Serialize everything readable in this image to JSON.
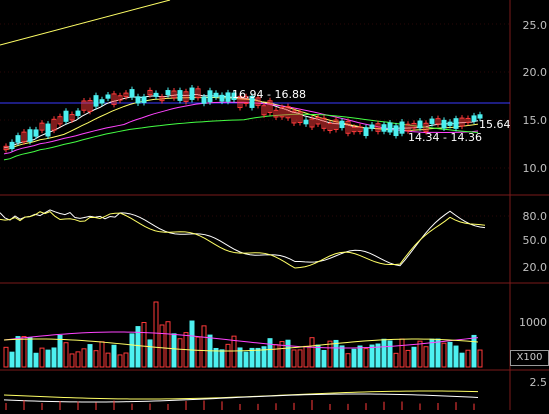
{
  "price_axis": [
    "25.0",
    "20.0",
    "15.0",
    "10.0"
  ],
  "kd_axis": [
    "80.0",
    "50.0",
    "20.0"
  ],
  "volume_axis": [
    "1000"
  ],
  "volume_unit": "X100",
  "macd_axis": [
    "2.5"
  ],
  "annotations": {
    "high_range": "16.94 - 16.88",
    "low_range": "14.34 - 14.36",
    "last_price": "15.64"
  },
  "colors": {
    "up": "#ff3a3a",
    "down": "#4df0f0",
    "ma_white": "#ffffff",
    "ma_yellow": "#ffff66",
    "ma_magenta": "#ff44ff",
    "ma_green": "#44ff44",
    "grid": "#7a1a1a"
  }
}
